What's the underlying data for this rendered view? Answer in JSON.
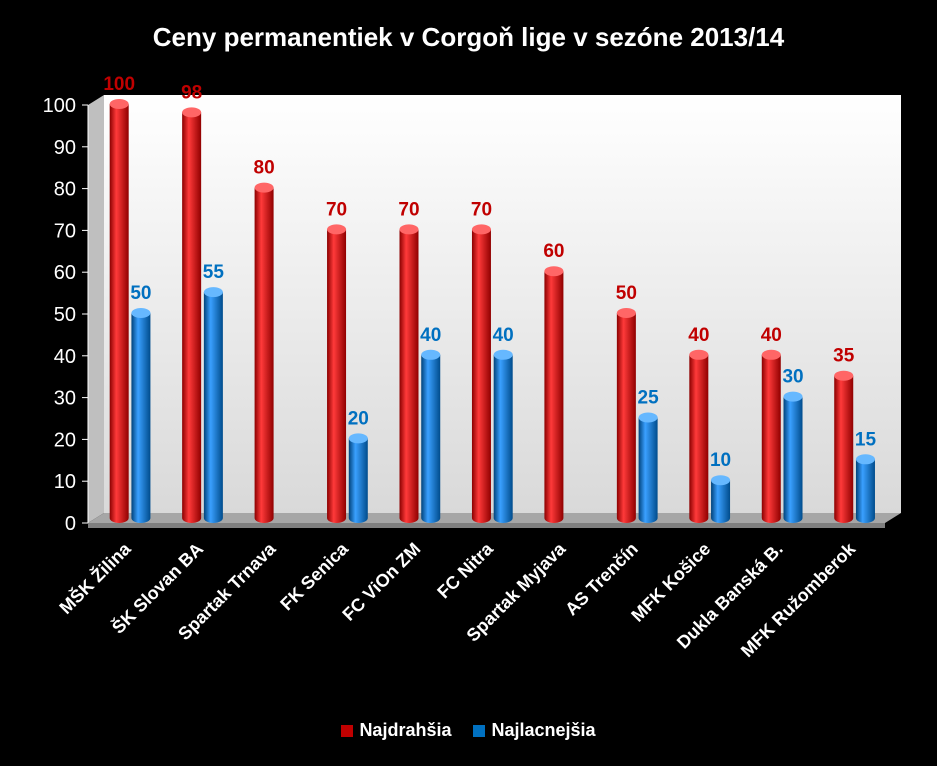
{
  "chart_data": {
    "type": "bar",
    "title": "Ceny permanentiek v Corgoň lige v sezóne 2013/14",
    "categories": [
      "MŠK Žilina",
      "ŠK Slovan BA",
      "Spartak Trnava",
      "FK Senica",
      "FC ViOn ZM",
      "FC Nitra",
      "Spartak Myjava",
      "AS Trenčín",
      "MFK Košice",
      "Dukla Banská B.",
      "MFK Ružomberok"
    ],
    "series": [
      {
        "name": "Najdrahšia",
        "values": [
          100,
          98,
          80,
          70,
          70,
          70,
          60,
          50,
          40,
          40,
          35
        ],
        "color": "#c00000"
      },
      {
        "name": "Najlacnejšia",
        "values": [
          50,
          55,
          null,
          20,
          40,
          40,
          null,
          25,
          10,
          30,
          15
        ],
        "color": "#0070c0"
      }
    ],
    "ylim": [
      0,
      100
    ],
    "yticks": [
      0,
      10,
      20,
      30,
      40,
      50,
      60,
      70,
      80,
      90,
      100
    ],
    "legend": "bottom",
    "grid": false
  }
}
